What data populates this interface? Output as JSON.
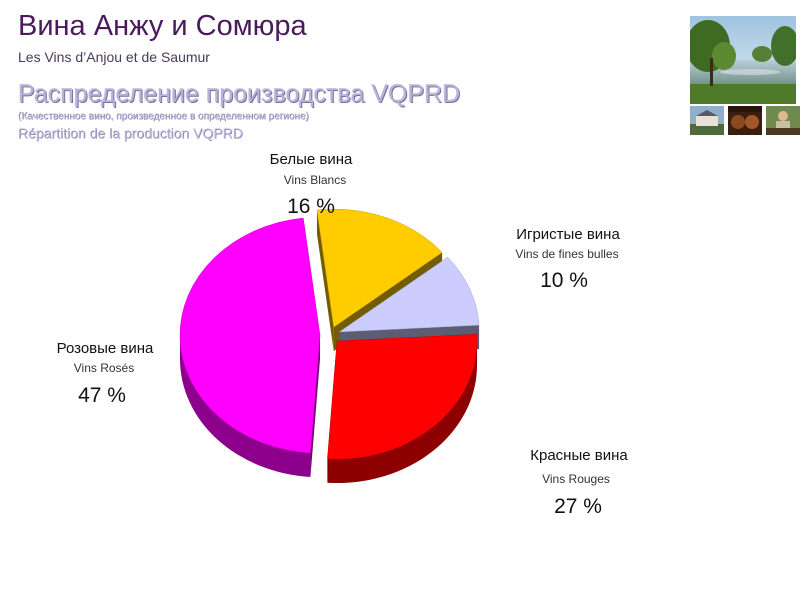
{
  "header": {
    "title": "Вина Анжу и Сомюра",
    "subtitle": "Les Vins d’Anjou et de Saumur",
    "section_title": "Распределение производства VQPRD",
    "note_ru": "(Качественное вино, произведенное в определенном регионе)",
    "note_fr": "Répartition de la production VQPRD"
  },
  "chart_data": {
    "type": "pie",
    "legend": "none",
    "slices": [
      {
        "name_ru": "Белые вина",
        "name_fr": "Vins Blancs",
        "value": 16,
        "label": "16 %",
        "color": "#ffcc00"
      },
      {
        "name_ru": "Игристые вина",
        "name_fr": "Vins de fines bulles",
        "value": 10,
        "label": "10 %",
        "color": "#ccccff"
      },
      {
        "name_ru": "Красные вина",
        "name_fr": "Vins Rouges",
        "value": 27,
        "label": "27 %",
        "color": "#ff0000"
      },
      {
        "name_ru": "Розовые вина",
        "name_fr": "Vins Rosés",
        "value": 47,
        "label": "47 %",
        "color": "#ff00ff"
      }
    ]
  }
}
